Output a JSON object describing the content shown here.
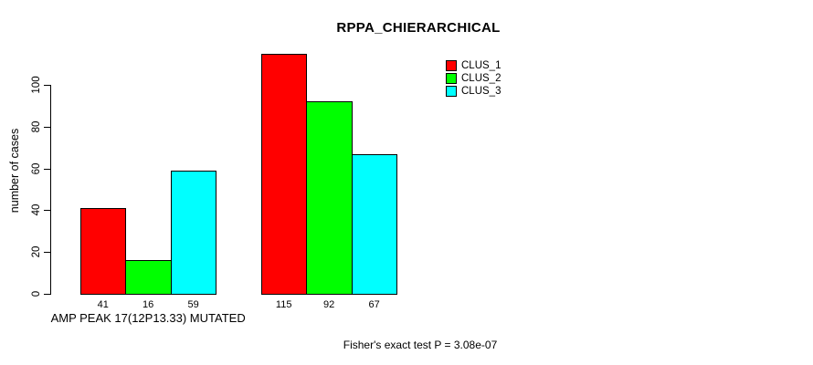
{
  "chart_data": {
    "type": "bar",
    "title": "RPPA_CHIERARCHICAL",
    "ylabel": "number of cases",
    "xlabel": "",
    "categories": [
      "AMP PEAK 17(12P13.33) MUTATED",
      ""
    ],
    "series": [
      {
        "name": "CLUS_1",
        "color": "#ff0000",
        "values": [
          41,
          115
        ]
      },
      {
        "name": "CLUS_2",
        "color": "#00ff00",
        "values": [
          16,
          92
        ]
      },
      {
        "name": "CLUS_3",
        "color": "#00ffff",
        "values": [
          59,
          67
        ]
      }
    ],
    "yticks": [
      0,
      20,
      40,
      60,
      80,
      100
    ],
    "ylim": [
      0,
      115
    ],
    "grid": false,
    "legend_position": "top-right",
    "bar_border_color": "#000000",
    "background_color": "#ffffff",
    "annotation": "Fisher's exact test P = 3.08e-07"
  }
}
